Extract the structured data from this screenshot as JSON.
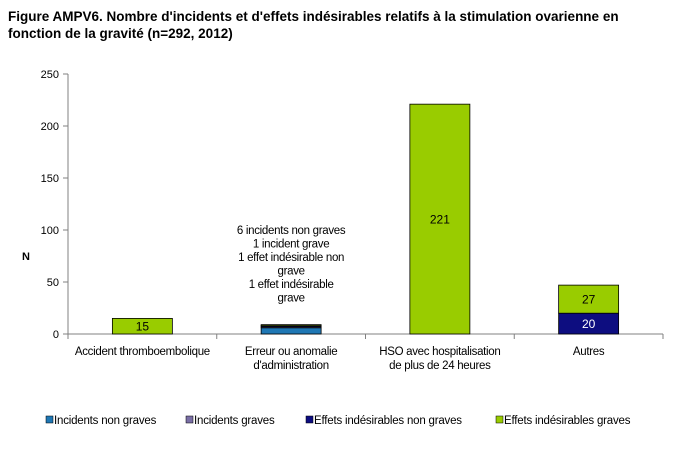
{
  "title": "Figure AMPV6. Nombre d'incidents et d'effets indésirables relatifs à la stimulation ovarienne en fonction de la gravité (n=292, 2012)",
  "chart_data": {
    "type": "bar",
    "stacked": true,
    "title": "Figure AMPV6. Nombre d'incidents et d'effets indésirables relatifs à la stimulation ovarienne en fonction de la gravité (n=292, 2012)",
    "ylabel": "N",
    "xlabel": "",
    "ylim": [
      0,
      250
    ],
    "yticks": [
      0,
      50,
      100,
      150,
      200,
      250
    ],
    "grid": false,
    "legend_position": "bottom",
    "categories": [
      [
        "Accident thromboembolique"
      ],
      [
        "Erreur ou anomalie",
        "d'administration"
      ],
      [
        "HSO avec hospitalisation",
        "de plus de 24 heures"
      ],
      [
        "Autres"
      ]
    ],
    "series": [
      {
        "name": "Incidents non graves",
        "color": "#1f77b4",
        "values": [
          0,
          6,
          0,
          0
        ]
      },
      {
        "name": "Incidents graves",
        "color": "#7a6fa6",
        "values": [
          0,
          1,
          0,
          0
        ]
      },
      {
        "name": "Effets indésirables non graves",
        "color": "#0d0d80",
        "values": [
          0,
          1,
          0,
          20
        ]
      },
      {
        "name": "Effets indésirables graves",
        "color": "#99cc00",
        "values": [
          15,
          1,
          221,
          27
        ]
      }
    ],
    "data_labels": [
      {
        "category": 0,
        "series": 3,
        "text": "15"
      },
      {
        "category": 2,
        "series": 3,
        "text": "221"
      },
      {
        "category": 3,
        "series": 2,
        "text": "20"
      },
      {
        "category": 3,
        "series": 3,
        "text": "27"
      }
    ],
    "annotation": {
      "category": 1,
      "lines": [
        "6 incidents non graves",
        "1 incident grave",
        "1 effet indésirable non",
        "grave",
        "1 effet indésirable",
        "grave"
      ]
    }
  }
}
